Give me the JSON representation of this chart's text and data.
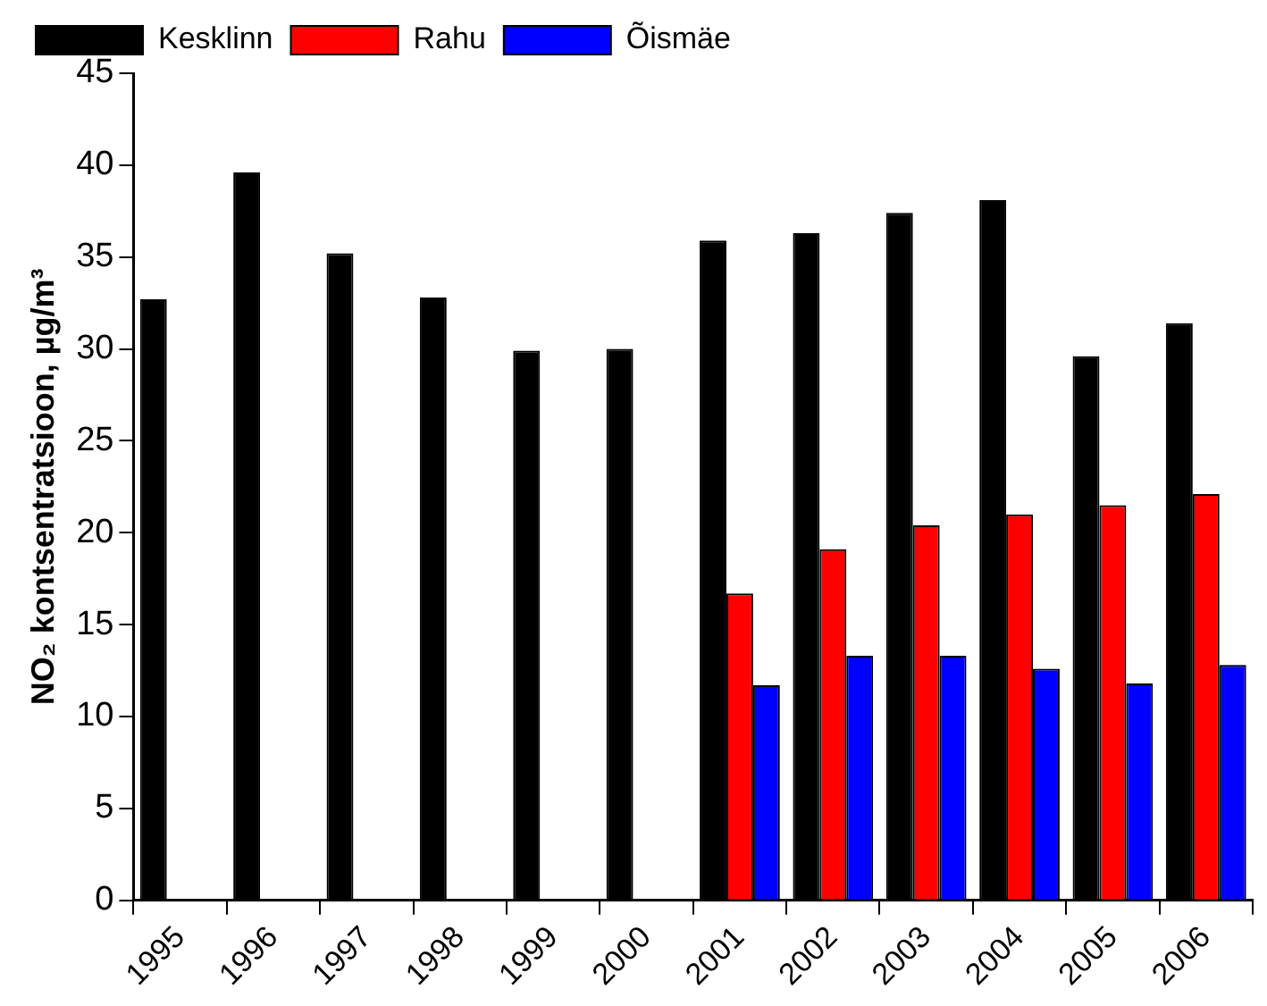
{
  "chart_data": {
    "type": "bar",
    "ylabel": "NO₂ kontsentratsioon, µg/m³",
    "categories": [
      "1995",
      "1996",
      "1997",
      "1998",
      "1999",
      "2000",
      "2001",
      "2002",
      "2003",
      "2004",
      "2005",
      "2006"
    ],
    "series": [
      {
        "name": "Kesklinn",
        "color": "#000000",
        "values": [
          32.7,
          39.6,
          35.2,
          32.8,
          29.9,
          30.0,
          35.9,
          36.3,
          37.4,
          38.1,
          29.6,
          31.4
        ]
      },
      {
        "name": "Rahu",
        "color": "#ff0000",
        "values": [
          null,
          null,
          null,
          null,
          null,
          null,
          16.7,
          19.1,
          20.4,
          21.0,
          21.5,
          22.1
        ]
      },
      {
        "name": "Õismäe",
        "color": "#0000ff",
        "values": [
          null,
          null,
          null,
          null,
          null,
          null,
          11.7,
          13.3,
          13.3,
          12.6,
          11.8,
          12.8
        ]
      }
    ],
    "ylim": [
      0,
      45
    ],
    "yticks": [
      0,
      5,
      10,
      15,
      20,
      25,
      30,
      35,
      40,
      45
    ],
    "grid": false,
    "legend": "top left"
  }
}
